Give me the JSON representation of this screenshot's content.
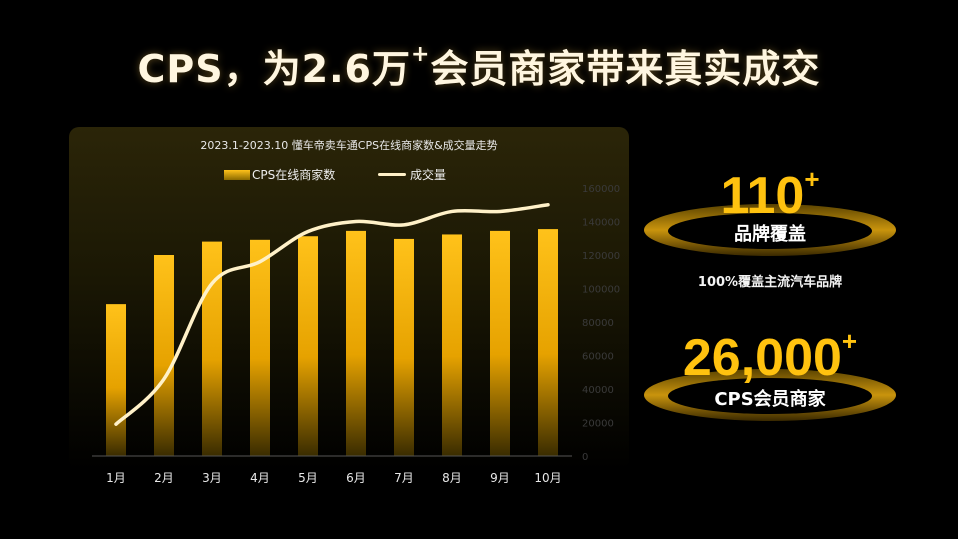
{
  "header": {
    "title_main": "CPS，为2.6万",
    "title_sup": "+",
    "title_tail": "会员商家带来真实成交"
  },
  "stats": {
    "brands": {
      "value": "110",
      "sup": "+",
      "label": "品牌覆盖",
      "note": "100%覆盖主流汽车品牌"
    },
    "merchants": {
      "value": "26,000",
      "sup": "+",
      "label": "CPS会员商家"
    }
  },
  "colors": {
    "accent": "#ffc20f",
    "line": "#fff1c8",
    "bar_top": "#ffc21a"
  },
  "chart_data": {
    "type": "bar",
    "title": "2023.1-2023.10 懂车帝卖车通CPS在线商家数&成交量走势",
    "categories": [
      "1月",
      "2月",
      "3月",
      "4月",
      "5月",
      "6月",
      "7月",
      "8月",
      "9月",
      "10月"
    ],
    "series": [
      {
        "name": "CPS在线商家数",
        "type": "bar",
        "axis": "left",
        "values": [
          17000,
          22500,
          24000,
          24200,
          24600,
          25200,
          24300,
          24800,
          25200,
          25400
        ]
      },
      {
        "name": "成交量",
        "type": "line",
        "axis": "right",
        "values": [
          19000,
          46000,
          103000,
          116000,
          134000,
          140000,
          138000,
          146000,
          146000,
          150000
        ]
      }
    ],
    "y_left": {
      "lim": [
        0,
        30000
      ]
    },
    "y_right": {
      "lim": [
        0,
        160000
      ],
      "ticks": [
        "0",
        "20000",
        "40000",
        "60000",
        "80000",
        "100000",
        "120000",
        "140000",
        "160000"
      ]
    },
    "legend": "top-center",
    "grid": false
  }
}
